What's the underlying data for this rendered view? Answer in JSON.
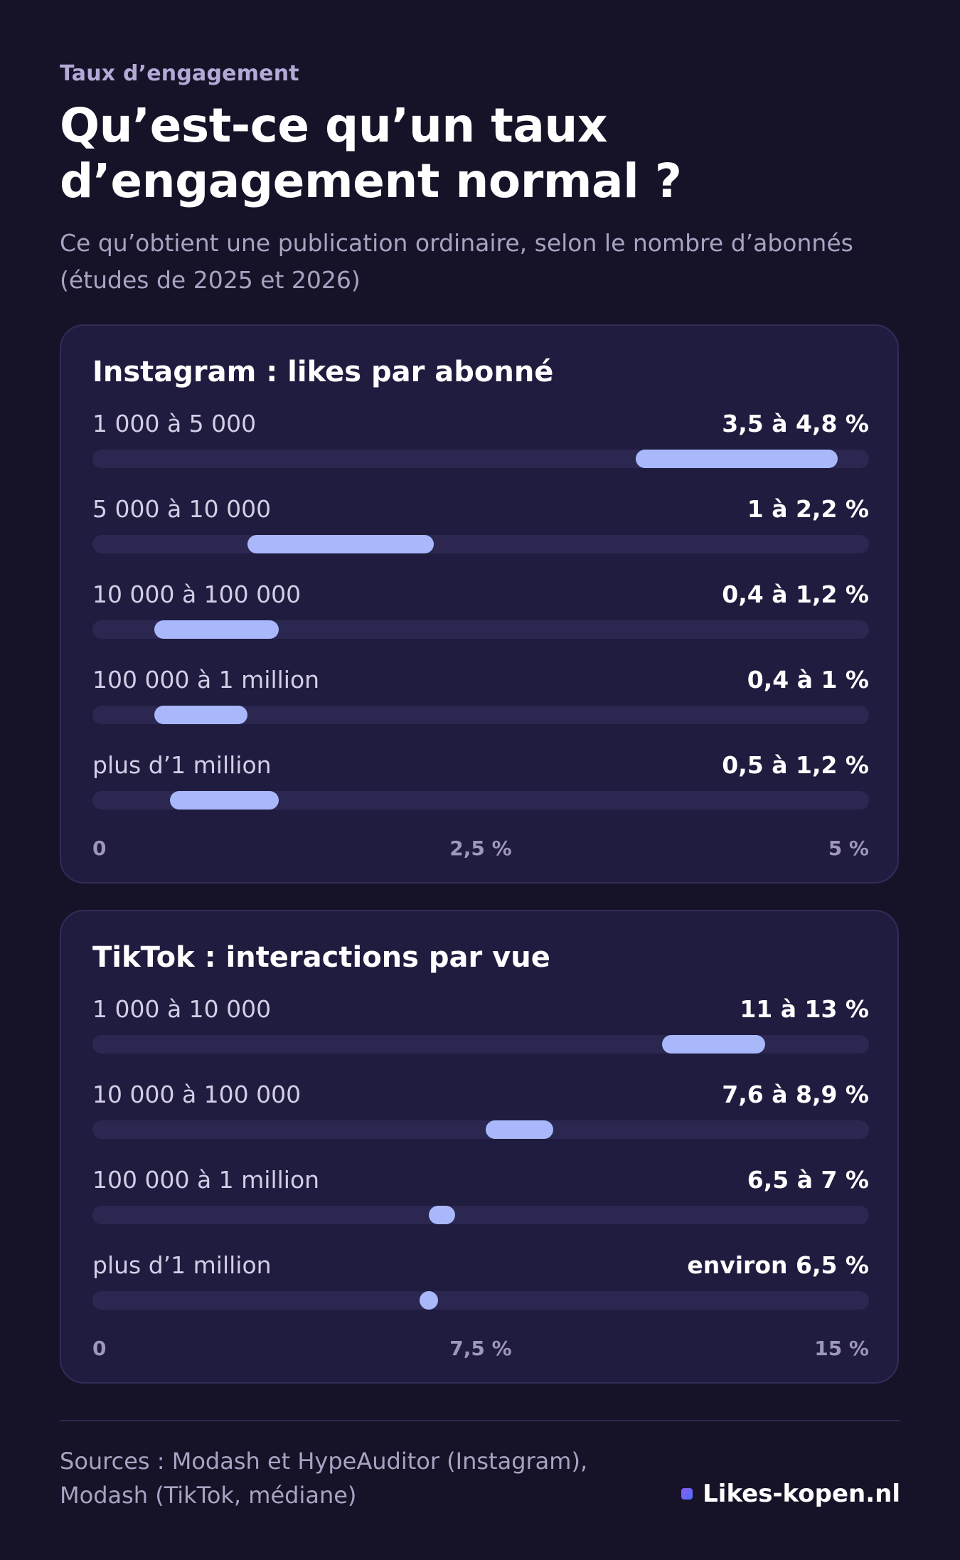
{
  "header": {
    "eyebrow": "Taux d’engagement",
    "title": "Qu’est-ce qu’un taux d’engagement normal ?",
    "subtitle": "Ce qu’obtient une publication ordinaire, selon le nombre d’abonnés (études de 2025 et 2026)"
  },
  "colors": {
    "background": "#161329",
    "card": "#201c3f",
    "track": "#2b2750",
    "range": "#a8b8fb",
    "brand_dot": "#6b5cf6"
  },
  "chart_data": [
    {
      "type": "bar",
      "title": "Instagram : likes par abonné",
      "xlim": [
        0,
        5
      ],
      "ticks": [
        "0",
        "2,5 %",
        "5 %"
      ],
      "rows": [
        {
          "label": "1 000 à 5 000",
          "value_label": "3,5 à 4,8 %",
          "low": 3.5,
          "high": 4.8
        },
        {
          "label": "5 000 à 10 000",
          "value_label": "1 à 2,2 %",
          "low": 1.0,
          "high": 2.2
        },
        {
          "label": "10 000 à 100 000",
          "value_label": "0,4 à 1,2 %",
          "low": 0.4,
          "high": 1.2
        },
        {
          "label": "100 000 à 1 million",
          "value_label": "0,4 à 1 %",
          "low": 0.4,
          "high": 1.0
        },
        {
          "label": "plus d’1 million",
          "value_label": "0,5 à 1,2 %",
          "low": 0.5,
          "high": 1.2
        }
      ]
    },
    {
      "type": "bar",
      "title": "TikTok : interactions par vue",
      "xlim": [
        0,
        15
      ],
      "ticks": [
        "0",
        "7,5 %",
        "15 %"
      ],
      "rows": [
        {
          "label": "1 000 à 10 000",
          "value_label": "11 à 13 %",
          "low": 11.0,
          "high": 13.0
        },
        {
          "label": "10 000 à 100 000",
          "value_label": "7,6 à 8,9 %",
          "low": 7.6,
          "high": 8.9
        },
        {
          "label": "100 000 à 1 million",
          "value_label": "6,5 à 7 %",
          "low": 6.5,
          "high": 7.0
        },
        {
          "label": "plus d’1 million",
          "value_label": "environ 6,5 %",
          "low": 6.5,
          "high": 6.5
        }
      ]
    }
  ],
  "footer": {
    "sources": "Sources : Modash et HypeAuditor (Instagram), Modash (TikTok, médiane)",
    "brand": "Likes-kopen.nl"
  }
}
